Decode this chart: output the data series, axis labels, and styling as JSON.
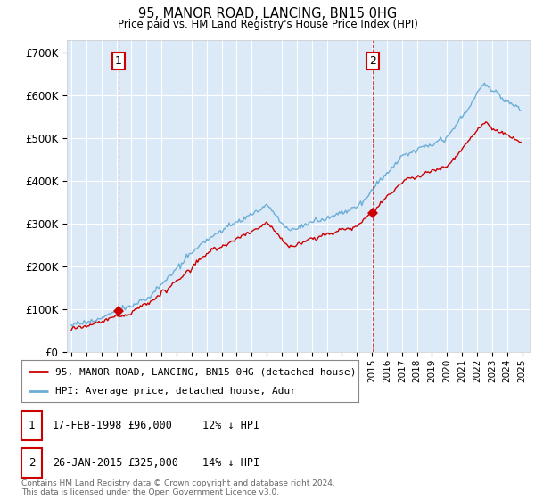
{
  "title": "95, MANOR ROAD, LANCING, BN15 0HG",
  "subtitle": "Price paid vs. HM Land Registry's House Price Index (HPI)",
  "ylim": [
    0,
    730000
  ],
  "xlim_start": 1994.7,
  "xlim_end": 2025.5,
  "plot_bg_color": "#dce9f7",
  "grid_color": "#ffffff",
  "hpi_color": "#6baed6",
  "price_color": "#cc0000",
  "sale1_date": 1998.12,
  "sale1_price": 96000,
  "sale1_label": "1",
  "sale1_year_label": "17-FEB-1998",
  "sale1_price_label": "£96,000",
  "sale1_hpi_label": "12% ↓ HPI",
  "sale2_date": 2015.07,
  "sale2_price": 325000,
  "sale2_label": "2",
  "sale2_year_label": "26-JAN-2015",
  "sale2_price_label": "£325,000",
  "sale2_hpi_label": "14% ↓ HPI",
  "legend_line1": "95, MANOR ROAD, LANCING, BN15 0HG (detached house)",
  "legend_line2": "HPI: Average price, detached house, Adur",
  "footnote": "Contains HM Land Registry data © Crown copyright and database right 2024.\nThis data is licensed under the Open Government Licence v3.0."
}
